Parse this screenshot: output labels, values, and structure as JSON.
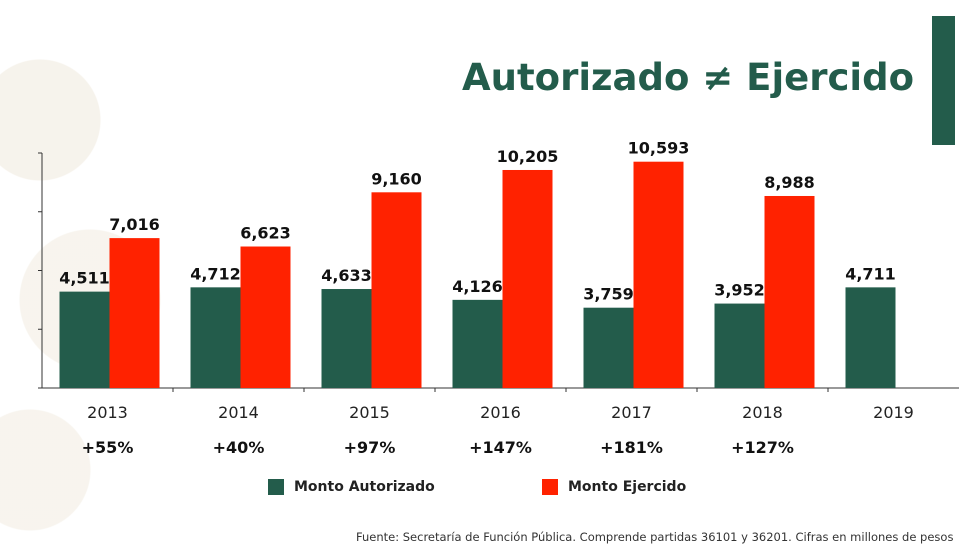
{
  "title": "Autorizado ≠ Ejercido",
  "source": "Fuente: Secretaría de Función Pública. Comprende partidas 36101 y 36201. Cifras en millones de pesos",
  "colors": {
    "autorizado": "#235c4b",
    "ejercido": "#ff2200",
    "accent": "#235c4b"
  },
  "chart_data": {
    "type": "bar",
    "categories": [
      "2013",
      "2014",
      "2015",
      "2016",
      "2017",
      "2018",
      "2019"
    ],
    "series": [
      {
        "name": "Monto Autorizado",
        "values": [
          4511,
          4712,
          4633,
          4126,
          3759,
          3952,
          4711
        ],
        "labels": [
          "4,511",
          "4,712",
          "4,633",
          "4,126",
          "3,759",
          "3,952",
          "4,711"
        ]
      },
      {
        "name": "Monto Ejercido",
        "values": [
          7016,
          6623,
          9160,
          10205,
          10593,
          8988,
          null
        ],
        "labels": [
          "7,016",
          "6,623",
          "9,160",
          "10,205",
          "10,593",
          "8,988",
          ""
        ]
      }
    ],
    "growth": [
      "+55%",
      "+40%",
      "+97%",
      "+147%",
      "+181%",
      "+127%",
      ""
    ],
    "ylim": [
      0,
      11000
    ],
    "grid": false,
    "legend": "bottom"
  }
}
